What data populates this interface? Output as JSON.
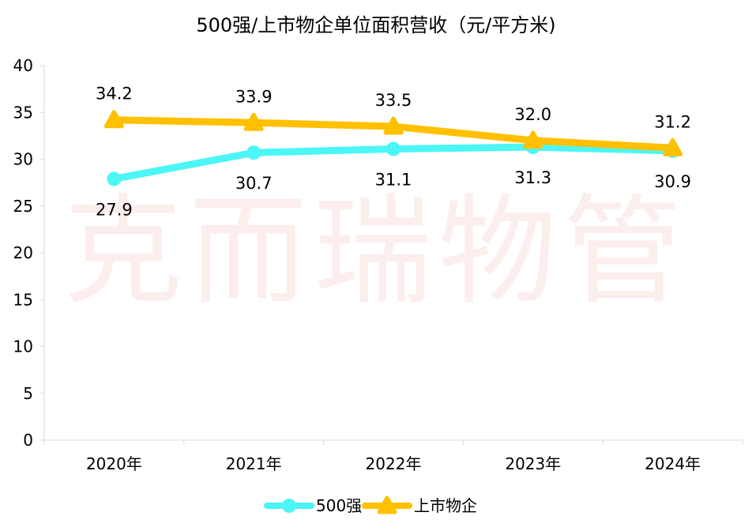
{
  "watermark": "克而瑞物管",
  "chart_data": {
    "type": "line",
    "title": "500强/上市物企单位面积营收（元/平方米)",
    "categories": [
      "2020年",
      "2021年",
      "2022年",
      "2023年",
      "2024年"
    ],
    "ylim": [
      0,
      40
    ],
    "yticks": [
      0,
      5,
      10,
      15,
      20,
      25,
      30,
      35,
      40
    ],
    "grid": false,
    "legend_position": "bottom",
    "series": [
      {
        "name": "500强",
        "values": [
          27.9,
          30.7,
          31.1,
          31.3,
          30.9
        ],
        "color": "#4cf6f6",
        "marker": "circle",
        "label_position": "below"
      },
      {
        "name": "上市物企",
        "values": [
          34.2,
          33.9,
          33.5,
          32.0,
          31.2
        ],
        "color": "#ffc000",
        "marker": "triangle",
        "label_position": "above"
      }
    ]
  }
}
